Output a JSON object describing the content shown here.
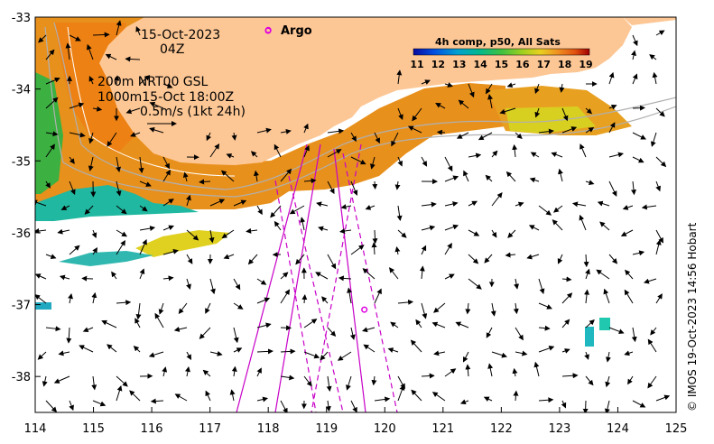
{
  "map": {
    "x_ticks": [
      "114",
      "115",
      "116",
      "117",
      "118",
      "119",
      "120",
      "121",
      "122",
      "123",
      "124",
      "125"
    ],
    "y_ticks": [
      "-33",
      "-34",
      "-35",
      "-36",
      "-37",
      "-38"
    ],
    "date_line": "15-Oct-2023",
    "time_line": "04Z",
    "depth_line_1": "200m  NRT00 GSL",
    "depth_line_2": "1000m15-Oct 18:00Z",
    "scale_label": "0.5m/s (1kt 24h)",
    "legend_argo": "Argo",
    "colorbar_title": "4h comp, p50, All Sats",
    "colorbar_ticks": [
      "11",
      "12",
      "13",
      "14",
      "15",
      "16",
      "17",
      "18",
      "19"
    ],
    "credit": "© IMOS 19-Oct-2023 14:56 Hobart",
    "colors": {
      "land": "#FDC795",
      "argo": "#E000E0",
      "track": "#C800C8",
      "contour": "#B0B0B0",
      "colorbar": [
        "#0a0aa0",
        "#0050e0",
        "#00a0d0",
        "#00b890",
        "#40c040",
        "#a0d020",
        "#e8d020",
        "#f09020",
        "#e05010",
        "#a00000"
      ]
    },
    "argo_floats": [
      {
        "lon": 118.0,
        "lat": -33.18
      },
      {
        "lon": 119.65,
        "lat": -37.07
      }
    ]
  }
}
